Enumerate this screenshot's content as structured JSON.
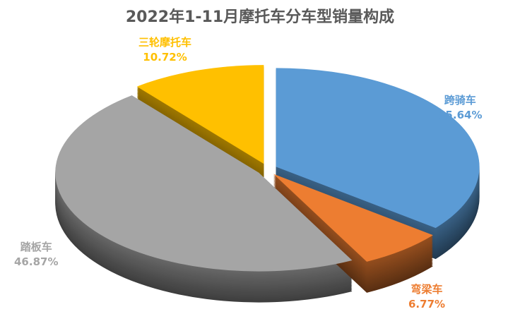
{
  "chart_data": {
    "type": "pie",
    "style": "3d-exploded",
    "title": "2022年1-11月摩托车分车型销量构成",
    "slices": [
      {
        "name": "跨骑车",
        "value": 35.64,
        "label": "35.64%",
        "color": "#5B9BD5"
      },
      {
        "name": "弯梁车",
        "value": 6.77,
        "label": "6.77%",
        "color": "#ED7D31"
      },
      {
        "name": "踏板车",
        "value": 46.87,
        "label": "46.87%",
        "color": "#A5A5A5"
      },
      {
        "name": "三轮摩托车",
        "value": 10.72,
        "label": "10.72%",
        "color": "#FFC000"
      }
    ]
  }
}
